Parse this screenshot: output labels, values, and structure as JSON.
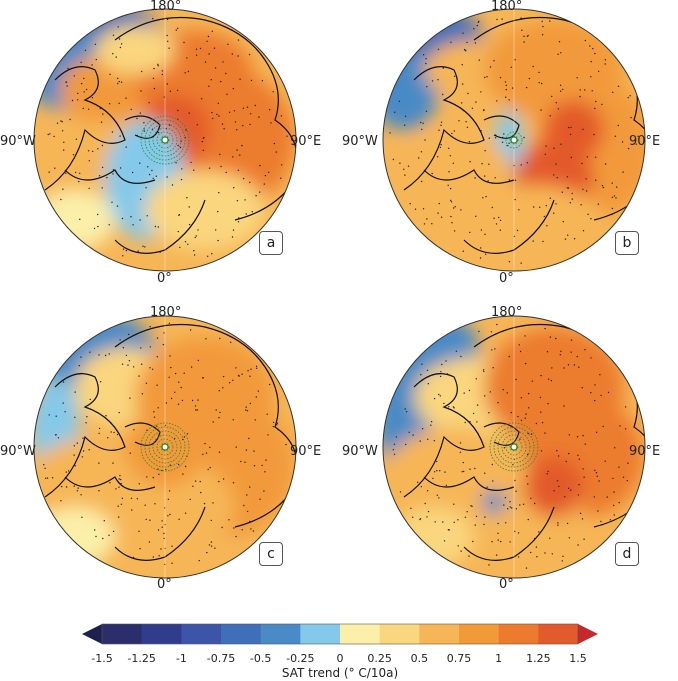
{
  "maps": [
    {
      "id": "a",
      "label": "a",
      "top_lon": "180°",
      "bottom_lon": "0°",
      "left_lon": "90°W",
      "right_lon": "90°E"
    },
    {
      "id": "b",
      "label": "b",
      "top_lon": "180°",
      "bottom_lon": "0°",
      "left_lon": "90°W",
      "right_lon": "90°E"
    },
    {
      "id": "c",
      "label": "c",
      "top_lon": "180°",
      "bottom_lon": "0°",
      "left_lon": "90°W",
      "right_lon": "90°E"
    },
    {
      "id": "d",
      "label": "d",
      "top_lon": "180°",
      "bottom_lon": "0°",
      "left_lon": "90°W",
      "right_lon": "90°E"
    }
  ],
  "colorbar": {
    "title": "SAT trend ($^\\circ$C/10a)",
    "title_display": "SAT trend (° C/10a)",
    "ticks": [
      "-1.5",
      "-1.25",
      "-1",
      "-0.75",
      "-0.5",
      "-0.25",
      "0",
      "0.25",
      "0.5",
      "0.75",
      "1",
      "1.25",
      "1.5"
    ],
    "colors": [
      "#2c2e6b",
      "#323c8c",
      "#3c55a8",
      "#3f6fb8",
      "#4a8ac6",
      "#84c9ea",
      "#fbefa9",
      "#fad67e",
      "#f6b657",
      "#f29a3a",
      "#ec7b2d",
      "#e35a2b"
    ],
    "under_color": "#1f2050",
    "over_color": "#c7282b"
  },
  "palette": {
    "land_outline": "#111111",
    "sig_dots": "#222222",
    "green_rings": "#2a8a2a"
  }
}
